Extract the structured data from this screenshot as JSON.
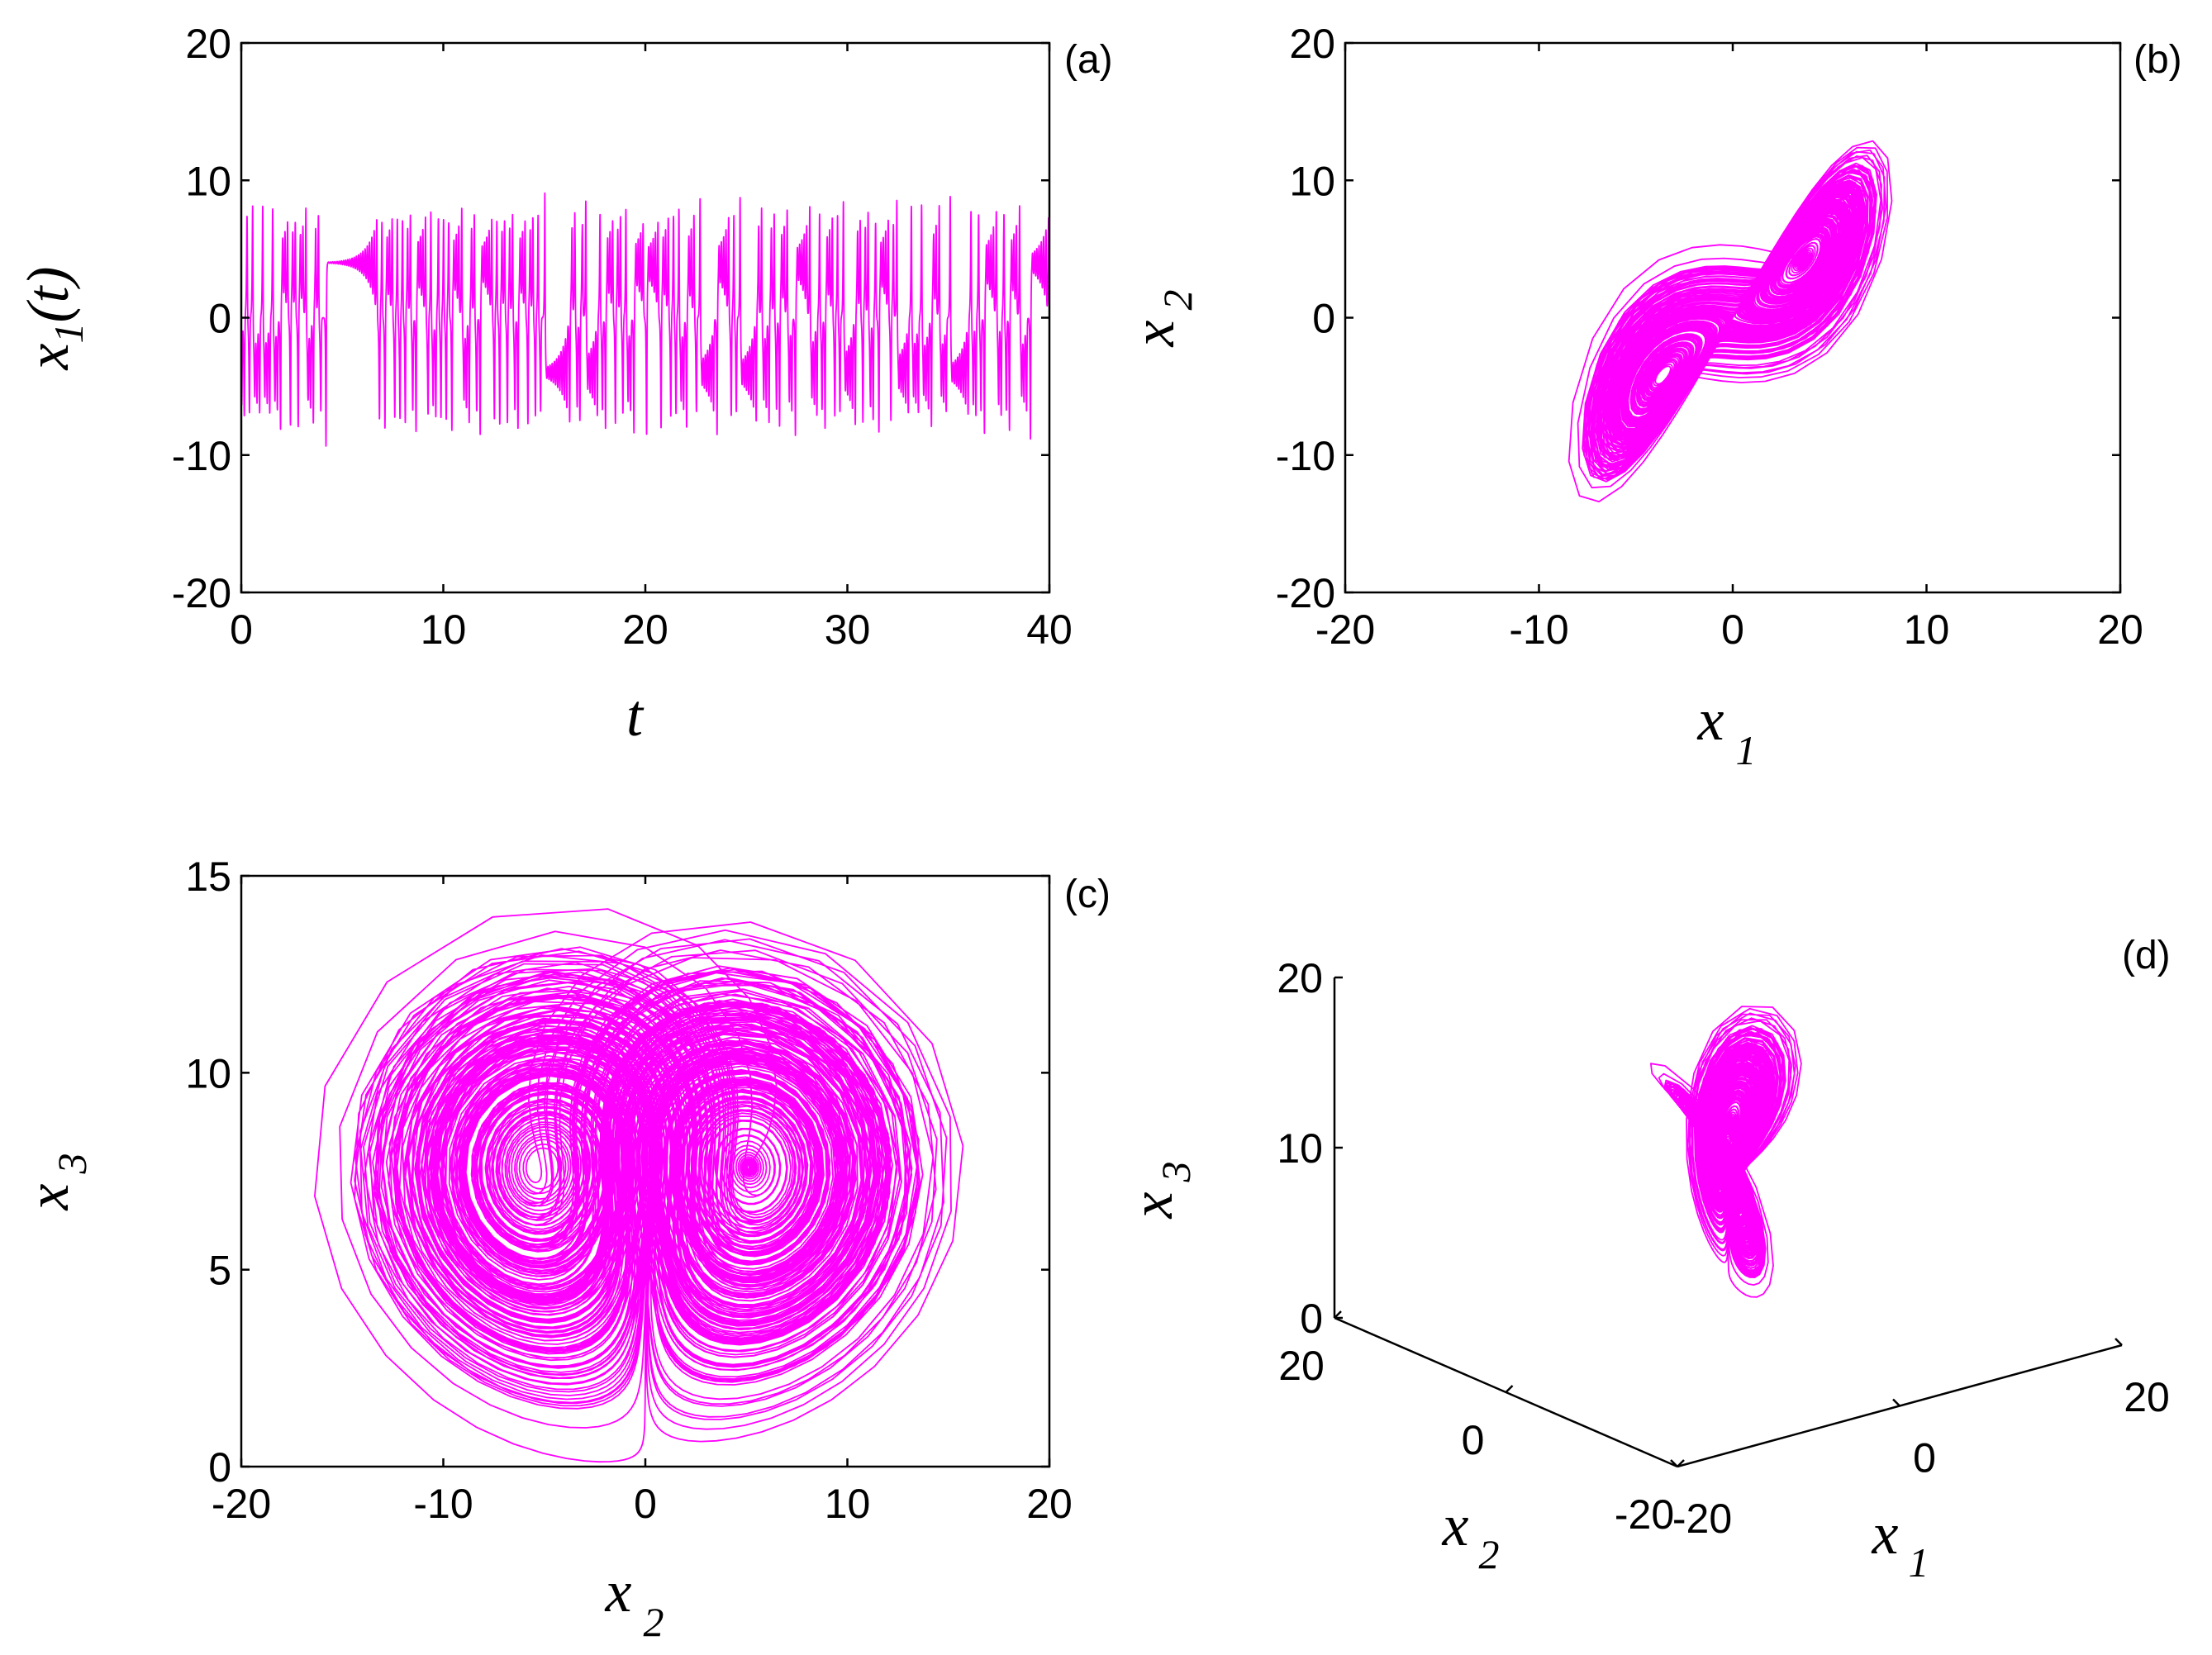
{
  "chart_data": [
    {
      "id": "a",
      "type": "line",
      "panel_label": "(a)",
      "xlabel": "t",
      "ylabel": "x",
      "ylabel_sub": "1",
      "ylabel_suffix": "(t)",
      "xlim": [
        0,
        40
      ],
      "ylim": [
        -20,
        20
      ],
      "xticks": [
        0,
        10,
        20,
        30,
        40
      ],
      "yticks": [
        -20,
        -10,
        0,
        10,
        20
      ],
      "xtick_labels": [
        "0",
        "10",
        "20",
        "30",
        "40"
      ],
      "ytick_labels": [
        "-20",
        "-10",
        "0",
        "10",
        "20"
      ],
      "grid": false,
      "color": "#ff00ff"
    },
    {
      "id": "b",
      "type": "line",
      "panel_label": "(b)",
      "xlabel": "x",
      "xlabel_sub": "1",
      "ylabel": "x",
      "ylabel_sub": "2",
      "xlim": [
        -20,
        20
      ],
      "ylim": [
        -20,
        20
      ],
      "xticks": [
        -20,
        -10,
        0,
        10,
        20
      ],
      "yticks": [
        -20,
        -10,
        0,
        10,
        20
      ],
      "xtick_labels": [
        "-20",
        "-10",
        "0",
        "10",
        "20"
      ],
      "ytick_labels": [
        "-20",
        "-10",
        "0",
        "10",
        "20"
      ],
      "grid": false,
      "color": "#ff00ff"
    },
    {
      "id": "c",
      "type": "line",
      "panel_label": "(c)",
      "xlabel": "x",
      "xlabel_sub": "2",
      "ylabel": "x",
      "ylabel_sub": "3",
      "xlim": [
        -20,
        20
      ],
      "ylim": [
        0,
        15
      ],
      "xticks": [
        -20,
        -10,
        0,
        10,
        20
      ],
      "yticks": [
        0,
        5,
        10,
        15
      ],
      "xtick_labels": [
        "-20",
        "-10",
        "0",
        "10",
        "20"
      ],
      "ytick_labels": [
        "0",
        "5",
        "10",
        "15"
      ],
      "grid": false,
      "color": "#ff00ff"
    },
    {
      "id": "d",
      "type": "line",
      "panel_label": "(d)",
      "xlabel": "x",
      "xlabel_sub": "1",
      "ylabel": "x",
      "ylabel_sub": "2",
      "zlabel": "x",
      "zlabel_sub": "3",
      "xticks": [
        -20,
        0,
        20
      ],
      "yticks": [
        -20,
        0,
        20
      ],
      "zticks": [
        0,
        10,
        20
      ],
      "xtick_labels": [
        "-20",
        "0",
        "20"
      ],
      "ytick_labels": [
        "-20",
        "0",
        "20"
      ],
      "ztick_labels": [
        "0",
        "10",
        "20"
      ],
      "grid": false,
      "color": "#ff00ff"
    }
  ]
}
